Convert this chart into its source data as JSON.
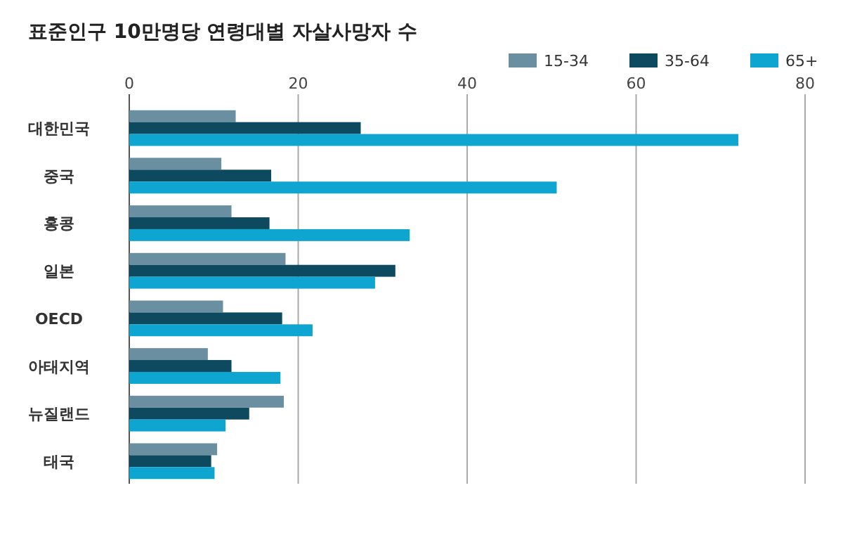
{
  "chart_data": {
    "type": "bar",
    "orientation": "horizontal",
    "title": "표준인구 10만명당 연령대별 자살사망자 수",
    "categories": [
      "대한민국",
      "중국",
      "홍콩",
      "일본",
      "OECD",
      "아태지역",
      "뉴질랜드",
      "태국"
    ],
    "series": [
      {
        "name": "15-34",
        "color": "#6a8fa0",
        "values": [
          12.6,
          10.9,
          12.1,
          18.5,
          11.1,
          9.3,
          18.3,
          10.4
        ]
      },
      {
        "name": "35-64",
        "color": "#0d4a60",
        "values": [
          27.4,
          16.8,
          16.6,
          31.5,
          18.1,
          12.1,
          14.2,
          9.7
        ]
      },
      {
        "name": "65+",
        "color": "#0ea5d0",
        "values": [
          72.1,
          50.6,
          33.2,
          29.1,
          21.7,
          17.9,
          11.4,
          10.1
        ]
      }
    ],
    "xlim": [
      0,
      80
    ],
    "xticks": [
      0,
      20,
      40,
      60,
      80
    ],
    "grid": "x",
    "legend": "top right"
  }
}
